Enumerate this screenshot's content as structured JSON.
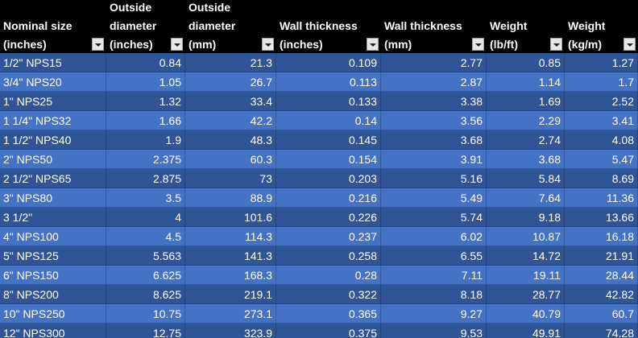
{
  "table": {
    "headers": [
      [
        "Nominal size",
        "(inches)"
      ],
      [
        "Outside",
        "diameter",
        "(inches)"
      ],
      [
        "Outside",
        "diameter",
        "(mm)"
      ],
      [
        "Wall thickness",
        "(inches)"
      ],
      [
        "Wall thickness",
        "(mm)"
      ],
      [
        "Weight",
        "(lb/ft)"
      ],
      [
        "Weight",
        "(kg/m)"
      ]
    ],
    "rows": [
      [
        "1/2\" NPS15",
        0.84,
        21.3,
        0.109,
        2.77,
        0.85,
        1.27
      ],
      [
        "3/4\" NPS20",
        1.05,
        26.7,
        0.113,
        2.87,
        1.14,
        1.7
      ],
      [
        "1\" NPS25",
        1.32,
        33.4,
        0.133,
        3.38,
        1.69,
        2.52
      ],
      [
        "1 1/4\" NPS32",
        1.66,
        42.2,
        0.14,
        3.56,
        2.29,
        3.41
      ],
      [
        "1 1/2\" NPS40",
        1.9,
        48.3,
        0.145,
        3.68,
        2.74,
        4.08
      ],
      [
        "2\" NPS50",
        2.375,
        60.3,
        0.154,
        3.91,
        3.68,
        5.47
      ],
      [
        "2 1/2\" NPS65",
        2.875,
        73,
        0.203,
        5.16,
        5.84,
        8.69
      ],
      [
        "3\" NPS80",
        3.5,
        88.9,
        0.216,
        5.49,
        7.64,
        11.36
      ],
      [
        "3 1/2\"",
        4,
        101.6,
        0.226,
        5.74,
        9.18,
        13.66
      ],
      [
        "4\" NPS100",
        4.5,
        114.3,
        0.237,
        6.02,
        10.87,
        16.18
      ],
      [
        "5\" NPS125",
        5.563,
        141.3,
        0.258,
        6.55,
        14.72,
        21.91
      ],
      [
        "6\" NPS150",
        6.625,
        168.3,
        0.28,
        7.11,
        19.11,
        28.44
      ],
      [
        "8\" NPS200",
        8.625,
        219.1,
        0.322,
        8.18,
        28.77,
        42.82
      ],
      [
        "10\" NPS250",
        10.75,
        273.1,
        0.365,
        9.27,
        40.79,
        60.7
      ],
      [
        "12\" NPS300",
        12.75,
        323.9,
        0.375,
        9.53,
        49.91,
        74.28
      ]
    ]
  }
}
